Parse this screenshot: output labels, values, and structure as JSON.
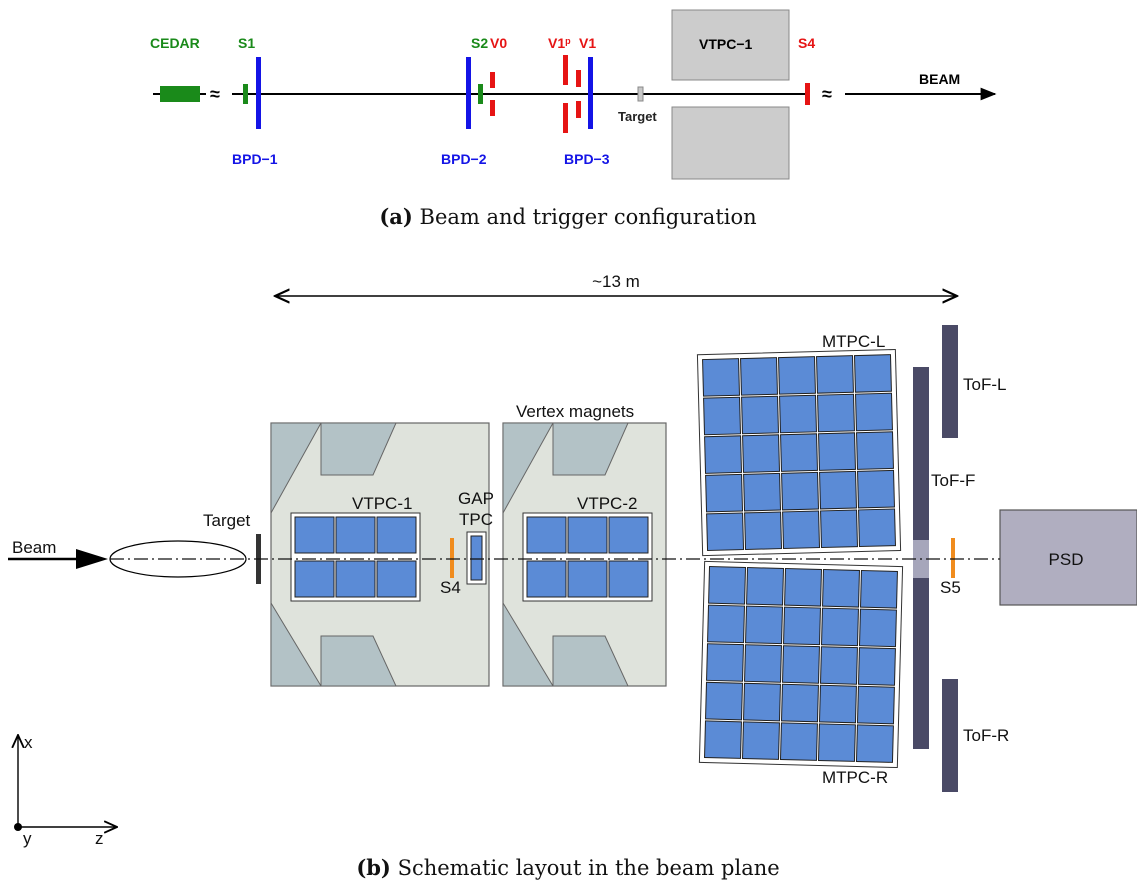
{
  "panel_a": {
    "labels": {
      "cedar": "CEDAR",
      "s1": "S1",
      "s2": "S2",
      "v0": "V0",
      "v1p": "V1",
      "v1p_sup": "p",
      "v1": "V1",
      "vtpc1": "VTPC−1",
      "s4": "S4",
      "beam": "BEAM",
      "target": "Target",
      "bpd1": "BPD−1",
      "bpd2": "BPD−2",
      "bpd3": "BPD−3",
      "break_mark": "≈"
    },
    "caption_tag": "(a)",
    "caption_text": "Beam and trigger configuration"
  },
  "panel_b": {
    "labels": {
      "distance": "~13 m",
      "beam": "Beam",
      "target": "Target",
      "vtpc1": "VTPC-1",
      "gap1": "GAP",
      "gap2": "TPC",
      "s4": "S4",
      "vertex_magnets": "Vertex magnets",
      "vtpc2": "VTPC-2",
      "mtpc_l": "MTPC-L",
      "mtpc_r": "MTPC-R",
      "tof_l": "ToF-L",
      "tof_f": "ToF-F",
      "tof_r": "ToF-R",
      "s5": "S5",
      "psd": "PSD",
      "axis_x": "x",
      "axis_y": "y",
      "axis_z": "z"
    },
    "caption_tag": "(b)",
    "caption_text": "Schematic layout in the beam plane"
  },
  "colors": {
    "green": "#1a8a1a",
    "blue": "#1414e6",
    "red": "#e61414",
    "orange": "#f08c1e",
    "tpc_cell": "#5b8bd6",
    "magnet_fill": "#dfe3dc",
    "magnet_corner": "#b3c2c6",
    "tof": "#4a4a66",
    "psd": "#b0aec0"
  }
}
